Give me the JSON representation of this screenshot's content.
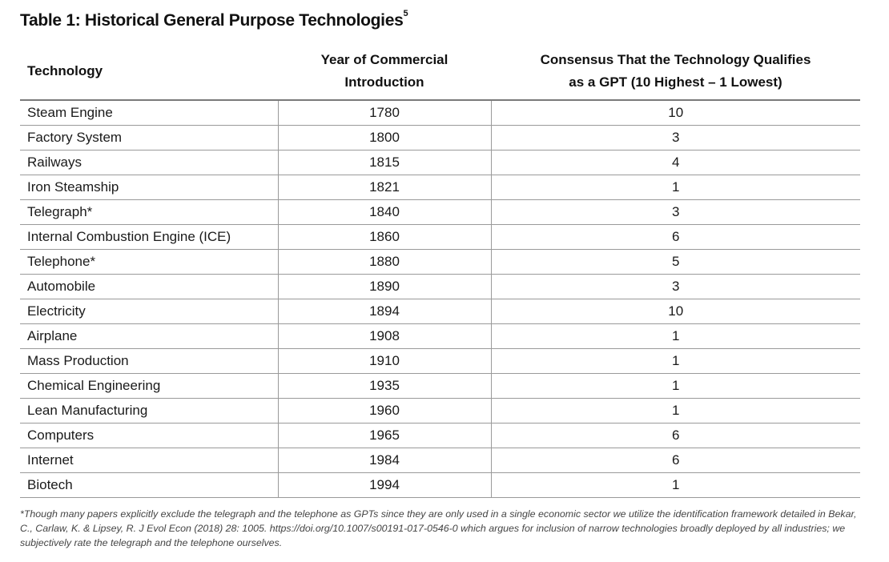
{
  "title": "Table 1: Historical General Purpose Technologies",
  "title_superscript": "5",
  "columns": {
    "technology": "Technology",
    "year_line1": "Year of Commercial",
    "year_line2": "Introduction",
    "consensus_line1": "Consensus That the Technology Qualifies",
    "consensus_line2": "as a GPT (10 Highest – 1 Lowest)"
  },
  "rows": [
    {
      "technology": "Steam Engine",
      "year": "1780",
      "score": "10"
    },
    {
      "technology": "Factory System",
      "year": "1800",
      "score": "3"
    },
    {
      "technology": "Railways",
      "year": "1815",
      "score": "4"
    },
    {
      "technology": "Iron Steamship",
      "year": "1821",
      "score": "1"
    },
    {
      "technology": "Telegraph*",
      "year": "1840",
      "score": "3"
    },
    {
      "technology": "Internal Combustion Engine (ICE)",
      "year": "1860",
      "score": "6"
    },
    {
      "technology": "Telephone*",
      "year": "1880",
      "score": "5"
    },
    {
      "technology": "Automobile",
      "year": "1890",
      "score": "3"
    },
    {
      "technology": "Electricity",
      "year": "1894",
      "score": "10"
    },
    {
      "technology": "Airplane",
      "year": "1908",
      "score": "1"
    },
    {
      "technology": "Mass Production",
      "year": "1910",
      "score": "1"
    },
    {
      "technology": "Chemical Engineering",
      "year": "1935",
      "score": "1"
    },
    {
      "technology": "Lean Manufacturing",
      "year": "1960",
      "score": "1"
    },
    {
      "technology": "Computers",
      "year": "1965",
      "score": "6"
    },
    {
      "technology": "Internet",
      "year": "1984",
      "score": "6"
    },
    {
      "technology": "Biotech",
      "year": "1994",
      "score": "1"
    }
  ],
  "footnote": "*Though many papers explicitly exclude the telegraph and the telephone as GPTs since they are only used in a single economic sector we utilize the identification framework detailed in Bekar, C., Carlaw, K. & Lipsey, R. J Evol Econ (2018) 28: 1005. https://doi.org/10.1007/s00191-017-0546-0 which argues for inclusion of narrow technologies broadly deployed by all industries; we subjectively rate the telegraph and the telephone ourselves."
}
